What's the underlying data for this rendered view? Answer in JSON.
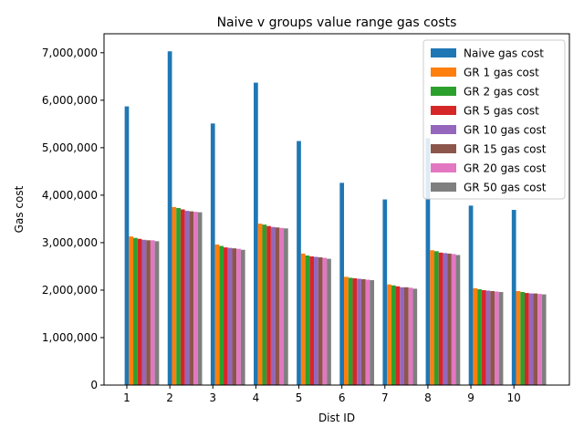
{
  "chart_data": {
    "type": "bar",
    "title": "Naive v groups value range gas costs",
    "xlabel": "Dist ID",
    "ylabel": "Gas cost",
    "ylim": [
      0,
      7400000
    ],
    "y_ticks": [
      0,
      1000000,
      2000000,
      3000000,
      4000000,
      5000000,
      6000000,
      7000000
    ],
    "y_tick_labels": [
      "0",
      "1,000,000",
      "2,000,000",
      "3,000,000",
      "4,000,000",
      "5,000,000",
      "6,000,000",
      "7,000,000"
    ],
    "categories": [
      "1",
      "2",
      "3",
      "4",
      "5",
      "6",
      "7",
      "8",
      "9",
      "10"
    ],
    "legend_position": "top-right",
    "grid": false,
    "series": [
      {
        "name": "Naive gas cost",
        "color": "#1f77b4",
        "values": [
          5870000,
          7030000,
          5510000,
          6370000,
          5140000,
          4260000,
          3910000,
          5200000,
          3780000,
          3690000
        ]
      },
      {
        "name": "GR 1 gas cost",
        "color": "#ff7f0e",
        "values": [
          3130000,
          3750000,
          2960000,
          3400000,
          2770000,
          2280000,
          2120000,
          2840000,
          2040000,
          1980000
        ]
      },
      {
        "name": "GR 2 gas cost",
        "color": "#2ca02c",
        "values": [
          3100000,
          3730000,
          2930000,
          3380000,
          2730000,
          2260000,
          2100000,
          2820000,
          2020000,
          1960000
        ]
      },
      {
        "name": "GR 5 gas cost",
        "color": "#d62728",
        "values": [
          3080000,
          3700000,
          2900000,
          3350000,
          2710000,
          2250000,
          2080000,
          2790000,
          2000000,
          1940000
        ]
      },
      {
        "name": "GR 10 gas cost",
        "color": "#9467bd",
        "values": [
          3060000,
          3670000,
          2890000,
          3330000,
          2700000,
          2240000,
          2060000,
          2780000,
          1990000,
          1930000
        ]
      },
      {
        "name": "GR 15 gas cost",
        "color": "#8c564b",
        "values": [
          3050000,
          3660000,
          2880000,
          3320000,
          2690000,
          2230000,
          2060000,
          2770000,
          1980000,
          1930000
        ]
      },
      {
        "name": "GR 20 gas cost",
        "color": "#e377c2",
        "values": [
          3050000,
          3650000,
          2870000,
          3310000,
          2680000,
          2220000,
          2050000,
          2760000,
          1970000,
          1920000
        ]
      },
      {
        "name": "GR 50 gas cost",
        "color": "#7f7f7f",
        "values": [
          3030000,
          3640000,
          2850000,
          3300000,
          2660000,
          2210000,
          2030000,
          2740000,
          1960000,
          1910000
        ]
      }
    ]
  }
}
